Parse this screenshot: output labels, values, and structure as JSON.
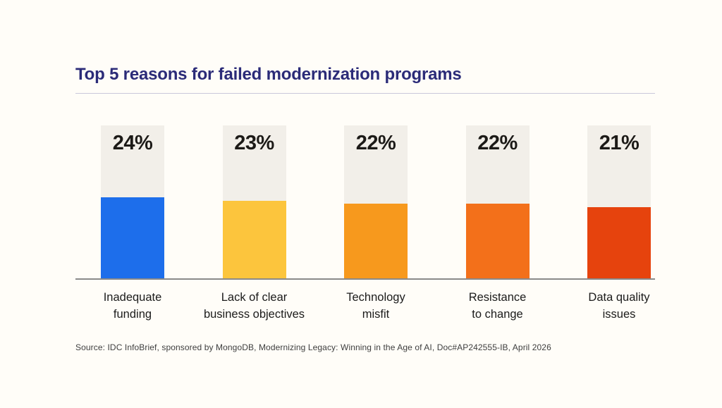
{
  "page": {
    "background_color": "#FFFDF8",
    "title": "Top 5 reasons for failed modernization programs",
    "title_color": "#2B2B78",
    "divider_color": "#C9C8DA",
    "source": "Source: IDC InfoBrief, sponsored by MongoDB,  Modernizing Legacy: Winning in the Age of AI, Doc#AP242555-IB, April 2026"
  },
  "chart_data": {
    "type": "bar",
    "title": "Top 5 reasons for failed modernization programs",
    "categories": [
      "Inadequate funding",
      "Lack of clear business objectives",
      "Technology misfit",
      "Resistance to change",
      "Data quality issues"
    ],
    "category_lines": [
      [
        "Inadequate",
        "funding"
      ],
      [
        "Lack of clear",
        "business objectives"
      ],
      [
        "Technology",
        "misfit"
      ],
      [
        "Resistance",
        "to change"
      ],
      [
        "Data quality",
        "issues"
      ]
    ],
    "values": [
      24,
      23,
      22,
      22,
      21
    ],
    "value_labels": [
      "24%",
      "23%",
      "22%",
      "22%",
      "21%"
    ],
    "bar_colors": [
      "#1D6EEB",
      "#FCC53D",
      "#F7991D",
      "#F3701A",
      "#E6430D"
    ],
    "track_color": "#F2EFE9",
    "axis_color": "#8A8A8A",
    "value_label_color": "#1C1A17",
    "xlabel": "",
    "ylabel": "",
    "ylim": [
      0,
      45
    ],
    "grid": false,
    "legend": false
  }
}
